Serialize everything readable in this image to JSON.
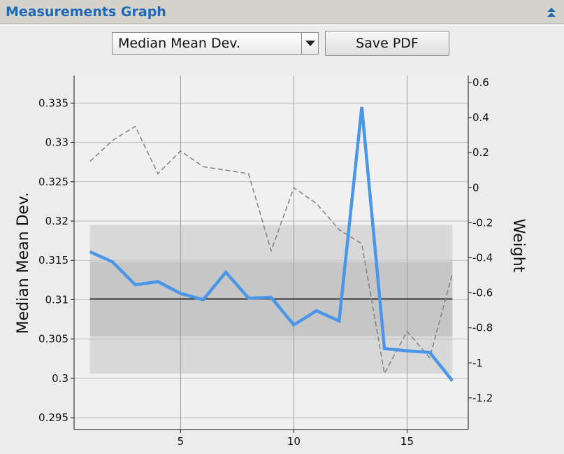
{
  "panel": {
    "title": "Measurements Graph"
  },
  "toolbar": {
    "metric_select": {
      "value": "Median Mean Dev."
    },
    "save_label": "Save PDF"
  },
  "icons": {
    "collapse": "double-chevron-up-icon",
    "dropdown": "triangle-down-icon"
  },
  "colors": {
    "accent": "#1f68b4",
    "main_series": "#4a96e8",
    "weight_series": "#808080",
    "mean_line": "#000000",
    "band_outer": "#d8d8d8",
    "band_inner": "#c6c6c6"
  },
  "chart_data": {
    "type": "line",
    "xlabel": "",
    "ylabel": "Median Mean Dev.",
    "y2label": "Weight",
    "xlim": [
      0.3,
      17.7
    ],
    "ylim": [
      0.2935,
      0.3385
    ],
    "y2lim": [
      -1.38,
      0.64
    ],
    "x_ticks": [
      5,
      10,
      15
    ],
    "y_ticks": [
      0.295,
      0.3,
      0.305,
      0.31,
      0.315,
      0.32,
      0.325,
      0.33,
      0.335
    ],
    "y_tick_labels": [
      "0.295",
      "0.3",
      "0.305",
      "0.31",
      "0.315",
      "0.32",
      "0.325",
      "0.33",
      "0.335"
    ],
    "y2_ticks": [
      0.6,
      0.4,
      0.2,
      0,
      -0.2,
      -0.4,
      -0.6,
      -0.8,
      -1,
      -1.2
    ],
    "y2_tick_labels": [
      "0.6",
      "0.4",
      "0.2",
      "0",
      "-0.2",
      "-0.4",
      "-0.6",
      "-0.8",
      "-1",
      "-1.2"
    ],
    "grid": {
      "vertical": true,
      "horizontal": true
    },
    "mean": 0.3101,
    "band_2sd": [
      0.3006,
      0.3195
    ],
    "band_1sd": [
      0.3054,
      0.3148
    ],
    "series": [
      {
        "axis": "left",
        "x": [
          1,
          2,
          3,
          4,
          5,
          6,
          7,
          8,
          9,
          10,
          11,
          12,
          13,
          14,
          15,
          16,
          17
        ],
        "values": [
          0.3161,
          0.3148,
          0.3119,
          0.3123,
          0.3108,
          0.31,
          0.3135,
          0.3102,
          0.3103,
          0.3068,
          0.3086,
          0.3073,
          0.3345,
          0.3038,
          0.3035,
          0.3033,
          0.2997
        ]
      },
      {
        "axis": "right",
        "x": [
          1,
          2,
          3,
          4,
          5,
          6,
          7,
          8,
          9,
          10,
          11,
          12,
          13,
          14,
          15,
          16,
          17
        ],
        "values": [
          0.15,
          0.27,
          0.35,
          0.08,
          0.21,
          0.12,
          0.1,
          0.08,
          -0.36,
          0.0,
          -0.09,
          -0.24,
          -0.32,
          -1.06,
          -0.82,
          -0.97,
          -0.49
        ]
      }
    ]
  }
}
